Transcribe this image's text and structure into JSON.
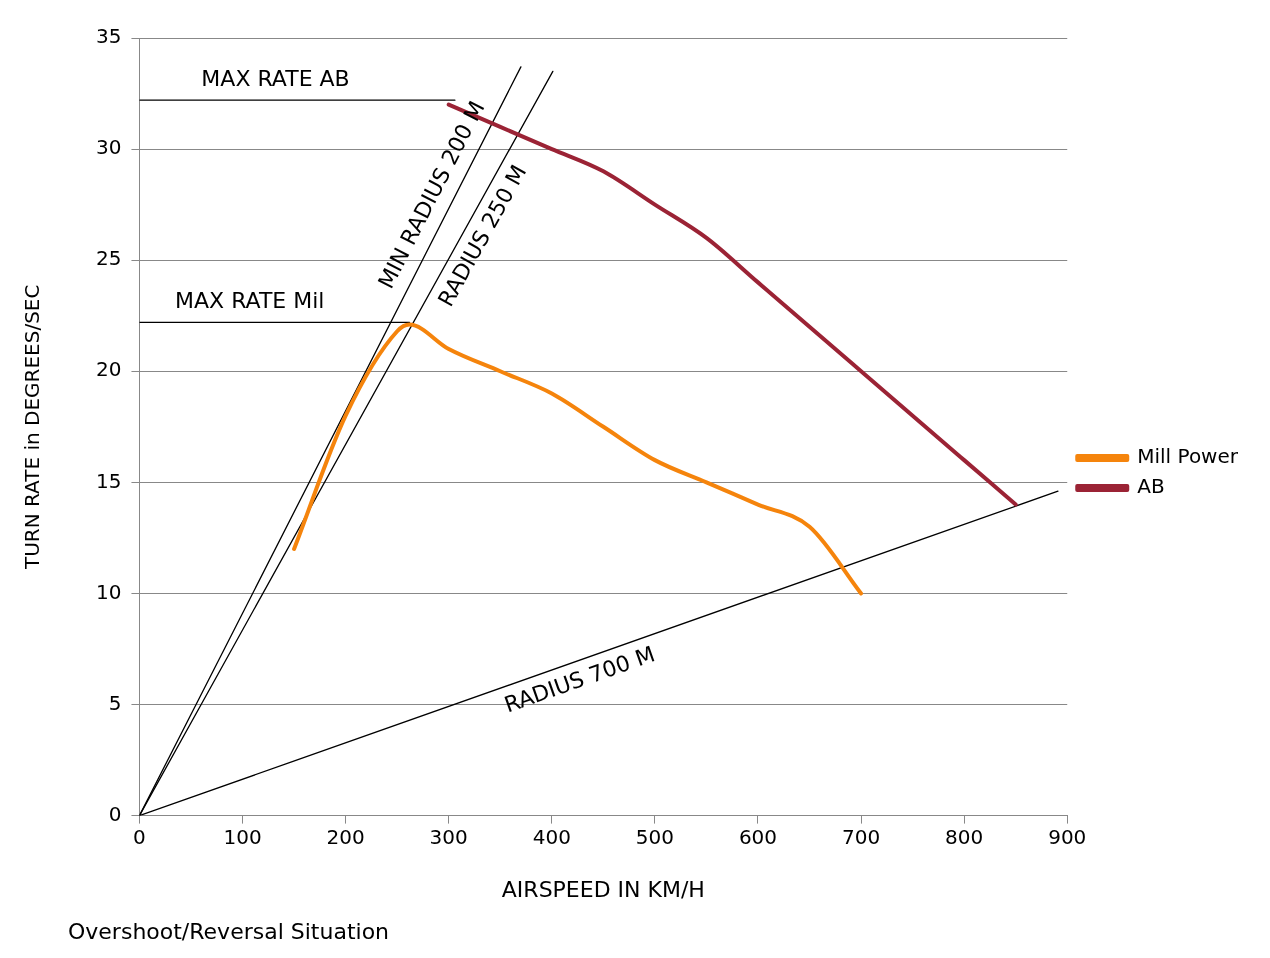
{
  "chart_data": {
    "type": "line",
    "xlabel": "AIRSPEED IN KM/H",
    "ylabel": "TURN RATE in DEGREES/SEC",
    "xlim": [
      0,
      900
    ],
    "ylim": [
      0,
      35
    ],
    "xticks": [
      0,
      100,
      200,
      300,
      400,
      500,
      600,
      700,
      800,
      900
    ],
    "yticks": [
      0,
      5,
      10,
      15,
      20,
      25,
      30,
      35
    ],
    "grid": "y",
    "legend": "right",
    "marker": "none",
    "series": [
      {
        "name": "Mill Power",
        "color": "#f5840c",
        "x": [
          150,
          200,
          250,
          262,
          300,
          350,
          400,
          450,
          500,
          550,
          600,
          650,
          700
        ],
        "values": [
          12,
          18,
          21.8,
          22.1,
          21,
          20,
          19,
          17.5,
          16,
          15,
          14,
          13,
          10
        ]
      },
      {
        "name": "AB",
        "color": "#9b2335",
        "x": [
          300,
          400,
          450,
          500,
          550,
          600,
          700,
          800,
          850
        ],
        "values": [
          32,
          30,
          29,
          27.5,
          26,
          24,
          20,
          16,
          14
        ]
      },
      {
        "color": "#000000",
        "x": [
          0,
          306
        ],
        "values": [
          32.2,
          32.2
        ]
      },
      {
        "color": "#000000",
        "x": [
          0,
          262
        ],
        "values": [
          22.2,
          22.2
        ]
      },
      {
        "color": "#000000",
        "x": [
          0,
          370
        ],
        "values": [
          0,
          33.7
        ]
      },
      {
        "color": "#000000",
        "x": [
          0,
          401
        ],
        "values": [
          0,
          33.5
        ]
      },
      {
        "color": "#000000",
        "x": [
          0,
          891
        ],
        "values": [
          0,
          14.6
        ]
      }
    ],
    "annotations": [
      {
        "text": "MAX RATE AB",
        "x": 132,
        "y": 32.2
      },
      {
        "text": "MAX RATE Mil",
        "x": 107,
        "y": 22.2
      },
      {
        "text": "MIN RADIUS 200 M",
        "x": 302,
        "y": 27.5
      },
      {
        "text": "RADIUS 250 M",
        "x": 317,
        "y": 26.5
      },
      {
        "text": "RADIUS 700 M",
        "x": 421,
        "y": 6.9
      },
      "Overshoot/Reversal Situation"
    ]
  }
}
